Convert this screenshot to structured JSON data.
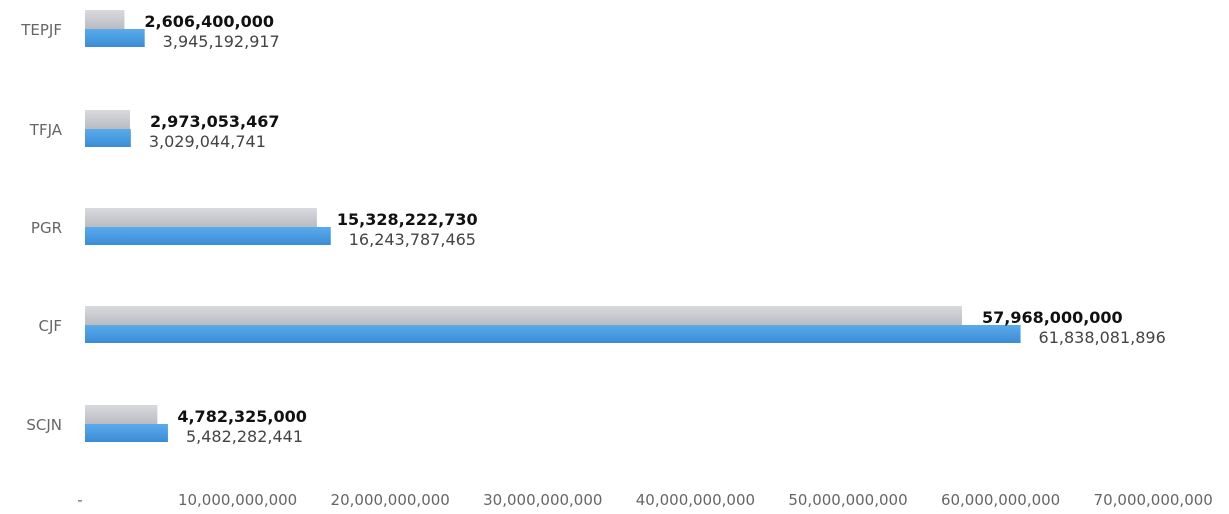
{
  "chart_data": {
    "type": "bar",
    "orientation": "horizontal",
    "categories": [
      "TEPJF",
      "TFJA",
      "PGR",
      "CJF",
      "SCJN"
    ],
    "series": [
      {
        "values": [
          2606400000,
          2973053467,
          15328222730,
          57968000000,
          4782325000
        ],
        "value_labels": [
          "2,606,400,000",
          "2,973,053,467",
          "15,328,222,730",
          "57,968,000,000",
          "4,782,325,000"
        ],
        "color": "#c8c9ce"
      },
      {
        "values": [
          3945192917,
          3029044741,
          16243787465,
          61838081896,
          5482282441
        ],
        "value_labels": [
          "3,945,192,917",
          "3,029,044,741",
          "16,243,787,465",
          "61,838,081,896",
          "5,482,282,441"
        ],
        "color": "#4a9de2"
      }
    ],
    "x_ticks": [
      "-",
      "10,000,000,000",
      "20,000,000,000",
      "30,000,000,000",
      "40,000,000,000",
      "50,000,000,000",
      "60,000,000,000",
      "70,000,000,000"
    ],
    "xlim": [
      0,
      70000000000
    ],
    "grid": false,
    "legend": "none",
    "title": "",
    "xlabel": "",
    "ylabel": ""
  }
}
